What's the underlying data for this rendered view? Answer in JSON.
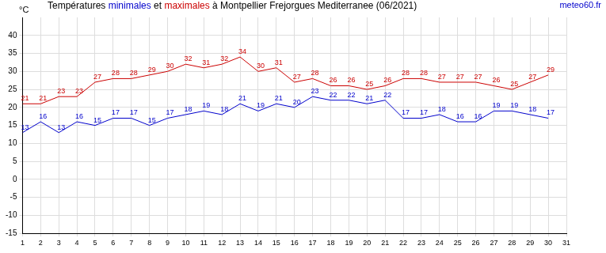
{
  "chart_data": {
    "type": "line",
    "title": "Températures minimales et maximales à Montpellier Frejorgues Mediterranee (06/2021)",
    "source": "meteo60.fr",
    "y_label": "°C",
    "categories": [
      "1",
      "2",
      "3",
      "4",
      "5",
      "6",
      "7",
      "8",
      "9",
      "10",
      "11",
      "12",
      "13",
      "14",
      "15",
      "16",
      "17",
      "18",
      "19",
      "20",
      "21",
      "22",
      "23",
      "24",
      "25",
      "26",
      "27",
      "28",
      "29",
      "30",
      "31"
    ],
    "series": [
      {
        "name": "minimales",
        "color": "#0000cc",
        "marker": "none",
        "line_style": "solid",
        "values": [
          13,
          16,
          13,
          16,
          15,
          17,
          17,
          15,
          17,
          18,
          19,
          18,
          21,
          19,
          21,
          20,
          23,
          22,
          22,
          21,
          22,
          17,
          17,
          18,
          16,
          16,
          19,
          19,
          18,
          17,
          null
        ]
      },
      {
        "name": "maximales",
        "color": "#cc0000",
        "marker": "none",
        "line_style": "solid",
        "values": [
          21,
          21,
          23,
          23,
          27,
          28,
          28,
          29,
          30,
          32,
          31,
          32,
          34,
          30,
          31,
          27,
          28,
          26,
          26,
          25,
          26,
          28,
          28,
          27,
          27,
          27,
          26,
          25,
          27,
          29,
          null
        ]
      }
    ],
    "ylim": [
      -15,
      45
    ],
    "yticks": [
      -15,
      -10,
      -5,
      0,
      5,
      10,
      15,
      20,
      25,
      30,
      35,
      40
    ],
    "grid": true,
    "data_labels": true
  }
}
